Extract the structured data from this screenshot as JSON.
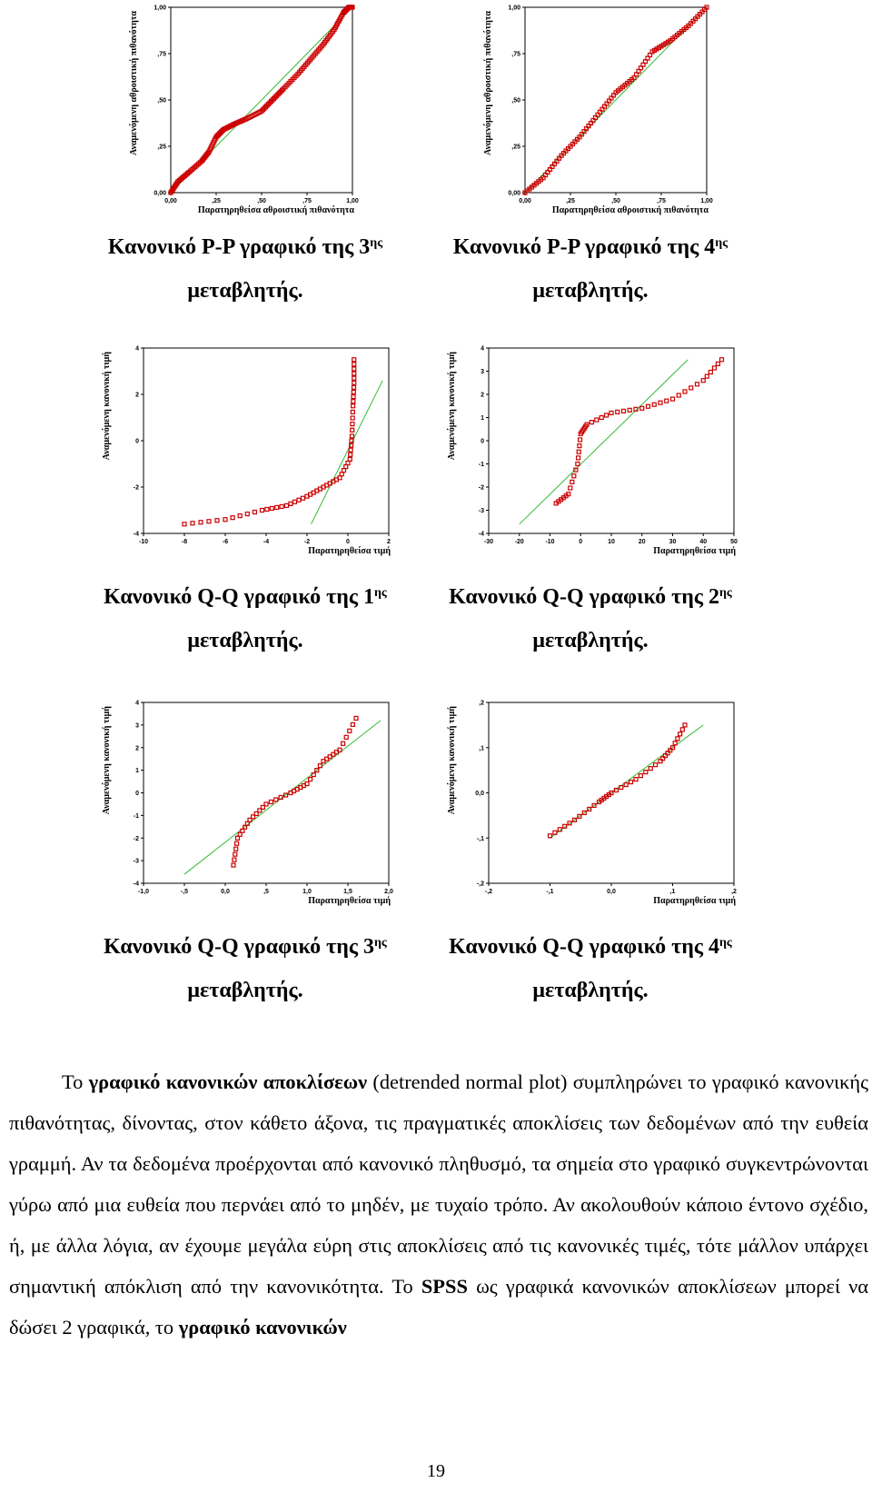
{
  "plots": [
    {
      "id": "pp3",
      "type": "scatter",
      "ylabel": "Αναμενόμενη αθροιστική πιθανότητα",
      "xlabel": "Παρατηρηθείσα αθροιστική πιθανότητα",
      "xticks": [
        "0,00",
        ",25",
        ",50",
        ",75",
        "1,00"
      ],
      "yticks": [
        "0,00",
        ",25",
        ",50",
        ",75",
        "1,00"
      ],
      "xlim": [
        0,
        1
      ],
      "ylim": [
        0,
        1
      ],
      "refline": [
        [
          0,
          0
        ],
        [
          1,
          1
        ]
      ],
      "curve": [
        [
          0,
          0
        ],
        [
          0.04,
          0.06
        ],
        [
          0.1,
          0.11
        ],
        [
          0.17,
          0.17
        ],
        [
          0.21,
          0.22
        ],
        [
          0.25,
          0.3
        ],
        [
          0.29,
          0.34
        ],
        [
          0.35,
          0.37
        ],
        [
          0.42,
          0.4
        ],
        [
          0.5,
          0.44
        ],
        [
          0.56,
          0.5
        ],
        [
          0.62,
          0.56
        ],
        [
          0.7,
          0.64
        ],
        [
          0.77,
          0.72
        ],
        [
          0.84,
          0.8
        ],
        [
          0.9,
          0.88
        ],
        [
          0.95,
          0.97
        ],
        [
          0.98,
          1.0
        ],
        [
          1.0,
          1.0
        ]
      ]
    },
    {
      "id": "pp4",
      "type": "scatter",
      "ylabel": "Αναμενόμενη αθροιστική πιθανότητα",
      "xlabel": "Παρατηρηθείσα αθροιστική πιθανότητα",
      "xticks": [
        "0,00",
        ",25",
        ",50",
        ",75",
        "1,00"
      ],
      "yticks": [
        "0,00",
        ",25",
        ",50",
        ",75",
        "1,00"
      ],
      "xlim": [
        0,
        1
      ],
      "ylim": [
        0,
        1
      ],
      "refline": [
        [
          0,
          0
        ],
        [
          1,
          1
        ]
      ],
      "curve": [
        [
          0,
          0
        ],
        [
          0.1,
          0.08
        ],
        [
          0.2,
          0.2
        ],
        [
          0.3,
          0.3
        ],
        [
          0.4,
          0.42
        ],
        [
          0.5,
          0.54
        ],
        [
          0.6,
          0.62
        ],
        [
          0.7,
          0.76
        ],
        [
          0.8,
          0.82
        ],
        [
          0.9,
          0.9
        ],
        [
          1.0,
          1.0
        ]
      ]
    },
    {
      "id": "qq1",
      "type": "scatter",
      "ylabel": "Αναμενόμενη κανονική τιμή",
      "xlabel": "Παρατηρηθείσα τιμή",
      "xticks": [
        "-10",
        "-8",
        "-6",
        "-4",
        "-2",
        "0",
        "2"
      ],
      "yticks": [
        "-4",
        "-2",
        "0",
        "2",
        "4"
      ],
      "xlim": [
        -10,
        2
      ],
      "ylim": [
        -4,
        4
      ],
      "refline": [
        [
          -1.8,
          -3.6
        ],
        [
          1.7,
          2.6
        ]
      ],
      "curve": [
        [
          -8,
          -3.6
        ],
        [
          -6,
          -3.4
        ],
        [
          -4.2,
          -3.0
        ],
        [
          -3,
          -2.8
        ],
        [
          -2,
          -2.4
        ],
        [
          -1.2,
          -2.0
        ],
        [
          -0.4,
          -1.6
        ],
        [
          0.1,
          -0.8
        ],
        [
          0.2,
          0.2
        ],
        [
          0.25,
          1.5
        ],
        [
          0.3,
          2.5
        ],
        [
          0.3,
          3.5
        ]
      ]
    },
    {
      "id": "qq2",
      "type": "scatter",
      "ylabel": "Αναμενόμενη κανονική τιμή",
      "xlabel": "Παρατηρηθείσα τιμή",
      "xticks": [
        "-30",
        "-20",
        "-10",
        "0",
        "10",
        "20",
        "30",
        "40",
        "50"
      ],
      "yticks": [
        "-4",
        "-3",
        "-2",
        "-1",
        "0",
        "1",
        "2",
        "3",
        "4"
      ],
      "xlim": [
        -30,
        50
      ],
      "ylim": [
        -4,
        4
      ],
      "refline": [
        [
          -20,
          -3.6
        ],
        [
          35,
          3.5
        ]
      ],
      "curve": [
        [
          -8,
          -2.7
        ],
        [
          -4,
          -2.3
        ],
        [
          -1,
          -1
        ],
        [
          0,
          0.3
        ],
        [
          2,
          0.7
        ],
        [
          10,
          1.2
        ],
        [
          20,
          1.4
        ],
        [
          30,
          1.8
        ],
        [
          40,
          2.6
        ],
        [
          46,
          3.5
        ]
      ]
    },
    {
      "id": "qq3",
      "type": "scatter",
      "ylabel": "Αναμενόμενη κανονική τιμή",
      "xlabel": "Παρατηρηθείσα τιμή",
      "xticks": [
        "-1,0",
        "-,5",
        "0,0",
        ",5",
        "1,0",
        "1,5",
        "2,0"
      ],
      "yticks": [
        "-4",
        "-3",
        "-2",
        "-1",
        "0",
        "1",
        "2",
        "3",
        "4"
      ],
      "xlim": [
        -1,
        2
      ],
      "ylim": [
        -4,
        4
      ],
      "refline": [
        [
          -0.5,
          -3.6
        ],
        [
          1.9,
          3.2
        ]
      ],
      "curve": [
        [
          0.1,
          -3.2
        ],
        [
          0.15,
          -2
        ],
        [
          0.3,
          -1.2
        ],
        [
          0.5,
          -0.5
        ],
        [
          0.8,
          0
        ],
        [
          1.0,
          0.4
        ],
        [
          1.2,
          1.4
        ],
        [
          1.4,
          1.9
        ],
        [
          1.6,
          3.3
        ]
      ]
    },
    {
      "id": "qq4",
      "type": "scatter",
      "ylabel": "Αναμενόμενη κανονική τιμή",
      "xlabel": "Παρατηρηθείσα τιμή",
      "xticks": [
        "-,2",
        "-,1",
        "0,0",
        ",1",
        ",2"
      ],
      "yticks": [
        "-,2",
        "-,1",
        "0,0",
        ",1",
        ",2"
      ],
      "xlim": [
        -0.2,
        0.2
      ],
      "ylim": [
        -0.2,
        0.2
      ],
      "refline": [
        [
          -0.1,
          -0.1
        ],
        [
          0.15,
          0.15
        ]
      ],
      "curve": [
        [
          -0.1,
          -0.095
        ],
        [
          -0.06,
          -0.06
        ],
        [
          -0.02,
          -0.02
        ],
        [
          0,
          0
        ],
        [
          0.04,
          0.03
        ],
        [
          0.08,
          0.07
        ],
        [
          0.1,
          0.1
        ],
        [
          0.12,
          0.15
        ]
      ]
    }
  ],
  "captions": [
    {
      "pre": "Κανονικό P-P γραφικό της 3",
      "sup": "ης",
      "line2": "μεταβλητής."
    },
    {
      "pre": "Κανονικό P-P γραφικό της 4",
      "sup": "ης",
      "line2": "μεταβλητής."
    },
    {
      "pre": "Κανονικό Q-Q γραφικό της 1",
      "sup": "ης",
      "line2": "μεταβλητής."
    },
    {
      "pre": "Κανονικό Q-Q γραφικό της 2",
      "sup": "ης",
      "line2": "μεταβλητής."
    },
    {
      "pre": "Κανονικό Q-Q γραφικό της 3",
      "sup": "ης",
      "line2": "μεταβλητής."
    },
    {
      "pre": "Κανονικό Q-Q γραφικό της 4",
      "sup": "ης",
      "line2": "μεταβλητής."
    }
  ],
  "body": {
    "t1": "Το ",
    "b1": "γραφικό κανονικών αποκλίσεων",
    "t2": " (detrended normal plot) συμπληρώνει το γραφικό κανονικής πιθανότητας, δίνοντας, στον κάθετο άξονα, τις πραγματικές αποκλίσεις των δεδομένων από την ευθεία γραμμή. Αν τα δεδομένα προέρχονται από κανονικό πληθυσμό, τα σημεία στο γραφικό συγκεντρώνονται γύρω από μια ευθεία που περνάει από το μηδέν, με τυχαίο τρόπο. Αν ακολουθούν κάποιο έντονο σχέδιο, ή, με άλλα λόγια, αν έχουμε μεγάλα εύρη στις αποκλίσεις από τις κανονικές τιμές, τότε μάλλον υπάρχει σημαντική απόκλιση από την κανονικότητα. Το ",
    "b2": "SPSS",
    "t3": " ως γραφικά κανονικών αποκλίσεων μπορεί να δώσει 2 γραφικά, το ",
    "b3": "γραφικό κανονικών"
  },
  "page_number": "19",
  "colors": {
    "points": "#cc0000",
    "refline": "#33bb33",
    "axis": "#000000"
  }
}
